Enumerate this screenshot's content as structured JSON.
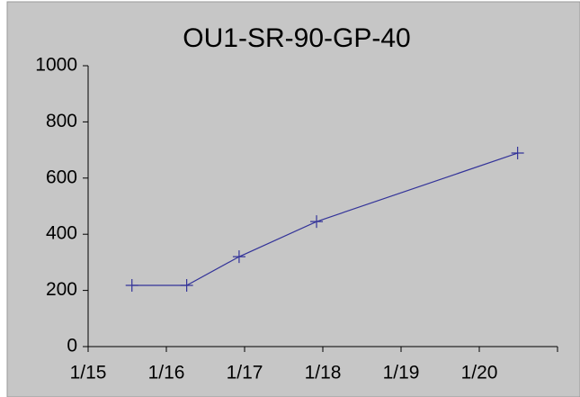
{
  "chart_data": {
    "type": "line",
    "title": "OU1-SR-90-GP-40",
    "x": [
      2015.56,
      2016.26,
      2016.93,
      2017.92,
      2020.49
    ],
    "series": [
      {
        "name": null,
        "color": "#333399",
        "values": [
          218,
          218,
          320,
          445,
          689
        ]
      }
    ],
    "xlim": [
      2015,
      2021
    ],
    "xticks": [
      {
        "value": 2015,
        "label": "1/15"
      },
      {
        "value": 2016,
        "label": "1/16"
      },
      {
        "value": 2017,
        "label": "1/17"
      },
      {
        "value": 2018,
        "label": "1/18"
      },
      {
        "value": 2019,
        "label": "1/19"
      },
      {
        "value": 2020,
        "label": "1/20"
      }
    ],
    "ylim": [
      0,
      1000
    ],
    "yticks": [
      0,
      200,
      400,
      600,
      800,
      1000
    ],
    "grid": false
  }
}
